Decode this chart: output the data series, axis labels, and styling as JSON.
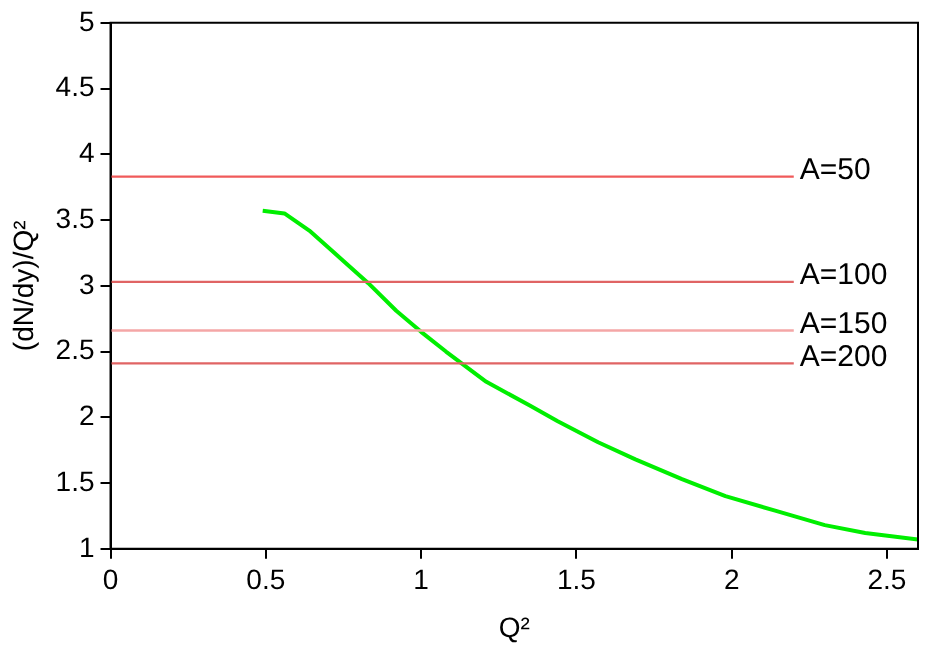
{
  "chart_data": {
    "type": "line",
    "xlabel": "Q²",
    "ylabel": "(dN/dy)/Q²",
    "xlim": [
      0,
      2.6
    ],
    "ylim": [
      1,
      5
    ],
    "xticks": [
      0,
      0.5,
      1,
      1.5,
      2,
      2.5
    ],
    "yticks": [
      1,
      1.5,
      2,
      2.5,
      3,
      3.5,
      4,
      4.5,
      5
    ],
    "grid": false,
    "legend": false,
    "marker": "none",
    "line_style": "solid",
    "series": [
      {
        "name": "A=50",
        "color": "#f05a5a",
        "x": [
          0,
          2.2
        ],
        "values": [
          3.83,
          3.83
        ]
      },
      {
        "name": "A=100",
        "color": "#e06464",
        "x": [
          0,
          2.2
        ],
        "values": [
          3.03,
          3.03
        ]
      },
      {
        "name": "A=150",
        "color": "#f4a6a6",
        "x": [
          0,
          2.2
        ],
        "values": [
          2.66,
          2.66
        ]
      },
      {
        "name": "A=200",
        "color": "#e06464",
        "x": [
          0,
          2.2
        ],
        "values": [
          2.41,
          2.41
        ]
      },
      {
        "color": "#00ee00",
        "x": [
          0.49,
          0.56,
          0.64,
          0.74,
          0.83,
          0.92,
          1.0,
          1.08,
          1.21,
          1.35,
          1.44,
          1.57,
          1.69,
          1.84,
          1.98,
          2.14,
          2.3,
          2.43,
          2.6
        ],
        "values": [
          3.57,
          3.55,
          3.42,
          3.21,
          3.02,
          2.81,
          2.65,
          2.5,
          2.27,
          2.09,
          1.97,
          1.81,
          1.68,
          1.53,
          1.4,
          1.29,
          1.18,
          1.12,
          1.07
        ]
      }
    ]
  }
}
